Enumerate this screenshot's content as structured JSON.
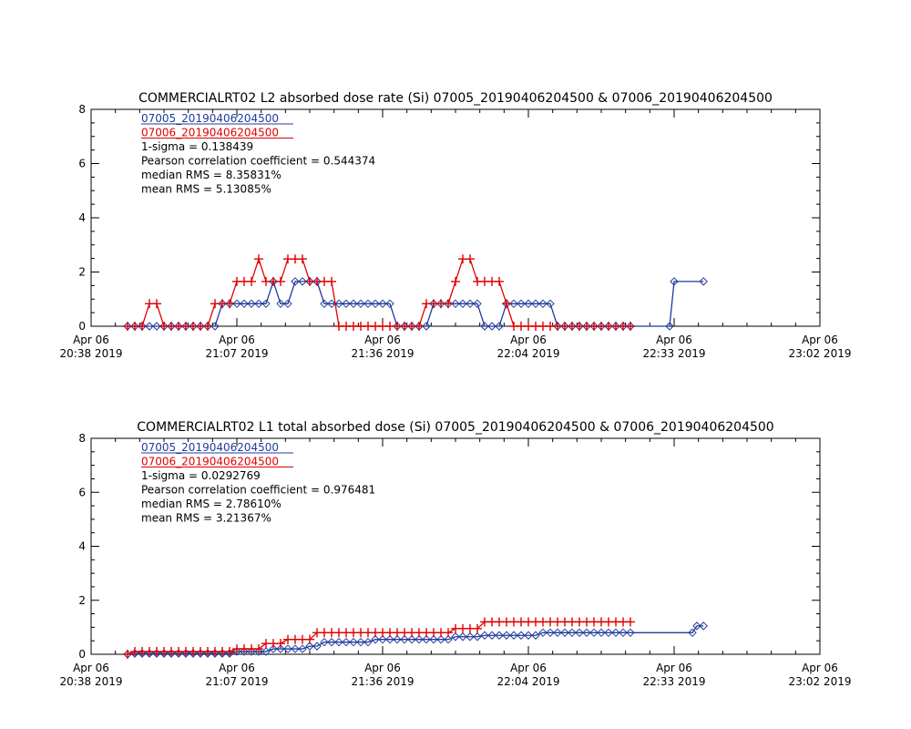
{
  "chart_data": [
    {
      "type": "line",
      "title": "COMMERCIALRT02 L2 absorbed dose rate (Si) 07005_20190406204500 & 07006_20190406204500",
      "annotations": [
        "1-sigma = 0.138439",
        "Pearson correlation coefficient = 0.544374",
        "median RMS = 8.35831%",
        "mean RMS = 5.13085%"
      ],
      "xlim": [
        1238,
        1382
      ],
      "xticks": [
        {
          "value": 1238,
          "label": "Apr 06\n20:38 2019"
        },
        {
          "value": 1266.8,
          "label": "Apr 06\n21:07 2019"
        },
        {
          "value": 1295.6,
          "label": "Apr 06\n21:36 2019"
        },
        {
          "value": 1324.4,
          "label": "Apr 06\n22:04 2019"
        },
        {
          "value": 1353.2,
          "label": "Apr 06\n22:33 2019"
        },
        {
          "value": 1382,
          "label": "Apr 06\n23:02 2019"
        }
      ],
      "ylim": [
        0,
        8
      ],
      "yticks": [
        0,
        2,
        4,
        6,
        8
      ],
      "x": [
        1245.2,
        1246.64,
        1248.08,
        1249.52,
        1250.96,
        1252.4,
        1253.84,
        1255.28,
        1256.72,
        1258.16,
        1259.6,
        1261.04,
        1262.48,
        1263.92,
        1265.36,
        1266.8,
        1268.24,
        1269.68,
        1271.12,
        1272.56,
        1274,
        1275.44,
        1276.88,
        1278.32,
        1279.76,
        1281.2,
        1282.64,
        1284.08,
        1285.52,
        1286.96,
        1288.4,
        1289.84,
        1291.28,
        1292.72,
        1294.16,
        1295.6,
        1297.04,
        1298.48,
        1299.92,
        1301.36,
        1302.8,
        1304.24,
        1305.68,
        1307.12,
        1308.56,
        1310,
        1311.44,
        1312.88,
        1314.32,
        1315.76,
        1317.2,
        1318.64,
        1320.08,
        1321.52,
        1322.96,
        1324.4,
        1325.84,
        1327.28,
        1328.72,
        1330.16,
        1331.6,
        1333.04,
        1334.48,
        1335.92,
        1337.36,
        1338.8,
        1340.24,
        1341.68,
        1343.12,
        1344.56,
        1352.3,
        1353.2,
        1359.0
      ],
      "series": [
        {
          "name": "07005_20190406204500",
          "color": "#203c9c",
          "marker": "diamond",
          "values": [
            0,
            0,
            0,
            0,
            0,
            0,
            0,
            0,
            0,
            0,
            0,
            0,
            0,
            0.83,
            0.83,
            0.83,
            0.83,
            0.83,
            0.83,
            0.83,
            1.65,
            0.83,
            0.83,
            1.65,
            1.65,
            1.65,
            1.65,
            0.83,
            0.83,
            0.83,
            0.83,
            0.83,
            0.83,
            0.83,
            0.83,
            0.83,
            0.83,
            0,
            0,
            0,
            0,
            0,
            0.83,
            0.83,
            0.83,
            0.83,
            0.83,
            0.83,
            0.83,
            0,
            0,
            0,
            0.83,
            0.83,
            0.83,
            0.83,
            0.83,
            0.83,
            0.83,
            0,
            0,
            0,
            0,
            0,
            0,
            0,
            0,
            0,
            0,
            0,
            0,
            1.65,
            1.65
          ]
        },
        {
          "name": "07006_20190406204500",
          "color": "#e00000",
          "marker": "plus",
          "values": [
            0,
            0,
            0,
            0.83,
            0.83,
            0,
            0,
            0,
            0,
            0,
            0,
            0,
            0.83,
            0.83,
            0.83,
            1.65,
            1.65,
            1.65,
            2.48,
            1.65,
            1.65,
            1.65,
            2.48,
            2.48,
            2.48,
            1.65,
            1.65,
            1.65,
            1.65,
            0,
            0,
            0,
            0,
            0,
            0,
            0,
            0,
            0,
            0,
            0,
            0,
            0.83,
            0.83,
            0.83,
            0.83,
            1.65,
            2.48,
            2.48,
            1.65,
            1.65,
            1.65,
            1.65,
            0.83,
            0,
            0,
            0,
            0,
            0,
            0,
            0,
            0,
            0,
            0,
            0,
            0,
            0,
            0,
            0,
            0,
            0,
            null,
            null,
            null
          ]
        }
      ]
    },
    {
      "type": "line",
      "title": "COMMERCIALRT02 L1 total absorbed dose (Si) 07005_20190406204500 & 07006_20190406204500",
      "annotations": [
        "1-sigma = 0.0292769",
        "Pearson correlation coefficient = 0.976481",
        "median RMS = 2.78610%",
        "mean RMS = 3.21367%"
      ],
      "xlim": [
        1238,
        1382
      ],
      "xticks": [
        {
          "value": 1238,
          "label": "Apr 06\n20:38 2019"
        },
        {
          "value": 1266.8,
          "label": "Apr 06\n21:07 2019"
        },
        {
          "value": 1295.6,
          "label": "Apr 06\n21:36 2019"
        },
        {
          "value": 1324.4,
          "label": "Apr 06\n22:04 2019"
        },
        {
          "value": 1353.2,
          "label": "Apr 06\n22:33 2019"
        },
        {
          "value": 1382,
          "label": "Apr 06\n23:02 2019"
        }
      ],
      "ylim": [
        0,
        8
      ],
      "yticks": [
        0,
        2,
        4,
        6,
        8
      ],
      "x": [
        1245.2,
        1246.64,
        1248.08,
        1249.52,
        1250.96,
        1252.4,
        1253.84,
        1255.28,
        1256.72,
        1258.16,
        1259.6,
        1261.04,
        1262.48,
        1263.92,
        1265.36,
        1266.8,
        1268.24,
        1269.68,
        1271.12,
        1272.56,
        1274,
        1275.44,
        1276.88,
        1278.32,
        1279.76,
        1281.2,
        1282.64,
        1284.08,
        1285.52,
        1286.96,
        1288.4,
        1289.84,
        1291.28,
        1292.72,
        1294.16,
        1295.6,
        1297.04,
        1298.48,
        1299.92,
        1301.36,
        1302.8,
        1304.24,
        1305.68,
        1307.12,
        1308.56,
        1310,
        1311.44,
        1312.88,
        1314.32,
        1315.76,
        1317.2,
        1318.64,
        1320.08,
        1321.52,
        1322.96,
        1324.4,
        1325.84,
        1327.28,
        1328.72,
        1330.16,
        1331.6,
        1333.04,
        1334.48,
        1335.92,
        1337.36,
        1338.8,
        1340.24,
        1341.68,
        1343.12,
        1344.56,
        1356.8,
        1357.7,
        1359.0
      ],
      "series": [
        {
          "name": "07005_20190406204500",
          "color": "#203c9c",
          "marker": "diamond",
          "values": [
            0,
            0.03,
            0.03,
            0.03,
            0.03,
            0.03,
            0.03,
            0.03,
            0.03,
            0.03,
            0.03,
            0.03,
            0.03,
            0.03,
            0.03,
            0.1,
            0.1,
            0.1,
            0.1,
            0.1,
            0.2,
            0.2,
            0.2,
            0.2,
            0.2,
            0.3,
            0.3,
            0.45,
            0.45,
            0.45,
            0.45,
            0.45,
            0.45,
            0.45,
            0.55,
            0.55,
            0.55,
            0.55,
            0.55,
            0.55,
            0.55,
            0.55,
            0.55,
            0.55,
            0.55,
            0.65,
            0.65,
            0.65,
            0.65,
            0.7,
            0.7,
            0.7,
            0.7,
            0.7,
            0.7,
            0.7,
            0.7,
            0.8,
            0.8,
            0.8,
            0.8,
            0.8,
            0.8,
            0.8,
            0.8,
            0.8,
            0.8,
            0.8,
            0.8,
            0.8,
            0.8,
            1.05,
            1.05
          ]
        },
        {
          "name": "07006_20190406204500",
          "color": "#e00000",
          "marker": "plus",
          "values": [
            0,
            0.1,
            0.1,
            0.1,
            0.1,
            0.1,
            0.1,
            0.1,
            0.1,
            0.1,
            0.1,
            0.1,
            0.1,
            0.1,
            0.1,
            0.2,
            0.2,
            0.2,
            0.2,
            0.4,
            0.4,
            0.4,
            0.55,
            0.55,
            0.55,
            0.55,
            0.8,
            0.8,
            0.8,
            0.8,
            0.8,
            0.8,
            0.8,
            0.8,
            0.8,
            0.8,
            0.8,
            0.8,
            0.8,
            0.8,
            0.8,
            0.8,
            0.8,
            0.8,
            0.8,
            0.95,
            0.95,
            0.95,
            0.95,
            1.2,
            1.2,
            1.2,
            1.2,
            1.2,
            1.2,
            1.2,
            1.2,
            1.2,
            1.2,
            1.2,
            1.2,
            1.2,
            1.2,
            1.2,
            1.2,
            1.2,
            1.2,
            1.2,
            1.2,
            1.2,
            null,
            null,
            null
          ]
        }
      ]
    }
  ]
}
